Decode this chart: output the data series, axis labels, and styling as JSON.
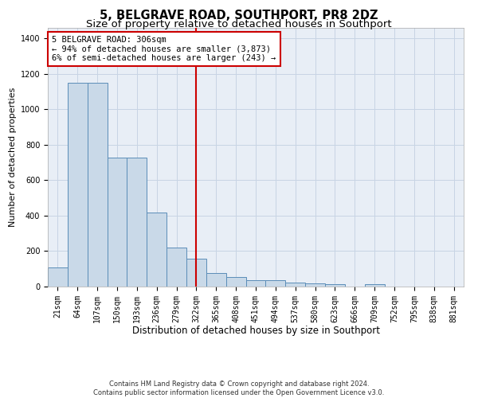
{
  "title1": "5, BELGRAVE ROAD, SOUTHPORT, PR8 2DZ",
  "title2": "Size of property relative to detached houses in Southport",
  "xlabel": "Distribution of detached houses by size in Southport",
  "ylabel": "Number of detached properties",
  "categories": [
    "21sqm",
    "64sqm",
    "107sqm",
    "150sqm",
    "193sqm",
    "236sqm",
    "279sqm",
    "322sqm",
    "365sqm",
    "408sqm",
    "451sqm",
    "494sqm",
    "537sqm",
    "580sqm",
    "623sqm",
    "666sqm",
    "709sqm",
    "752sqm",
    "795sqm",
    "838sqm",
    "881sqm"
  ],
  "values": [
    110,
    1150,
    1150,
    730,
    730,
    420,
    220,
    155,
    75,
    55,
    35,
    35,
    22,
    18,
    12,
    0,
    12,
    0,
    0,
    0,
    0
  ],
  "bar_color": "#c9d9e8",
  "bar_edge_color": "#5b8db8",
  "vline_x": 7,
  "vline_color": "#cc0000",
  "annotation_text": "5 BELGRAVE ROAD: 306sqm\n← 94% of detached houses are smaller (3,873)\n6% of semi-detached houses are larger (243) →",
  "annotation_box_color": "#ffffff",
  "annotation_box_edge": "#cc0000",
  "ylim": [
    0,
    1460
  ],
  "yticks": [
    0,
    200,
    400,
    600,
    800,
    1000,
    1200,
    1400
  ],
  "grid_color": "#c8d4e4",
  "bg_color": "#e8eef6",
  "footer_text": "Contains HM Land Registry data © Crown copyright and database right 2024.\nContains public sector information licensed under the Open Government Licence v3.0.",
  "title1_fontsize": 10.5,
  "title2_fontsize": 9.5,
  "xlabel_fontsize": 8.5,
  "ylabel_fontsize": 8.0,
  "tick_fontsize": 7.0,
  "annotation_fontsize": 7.5,
  "footer_fontsize": 6.0
}
